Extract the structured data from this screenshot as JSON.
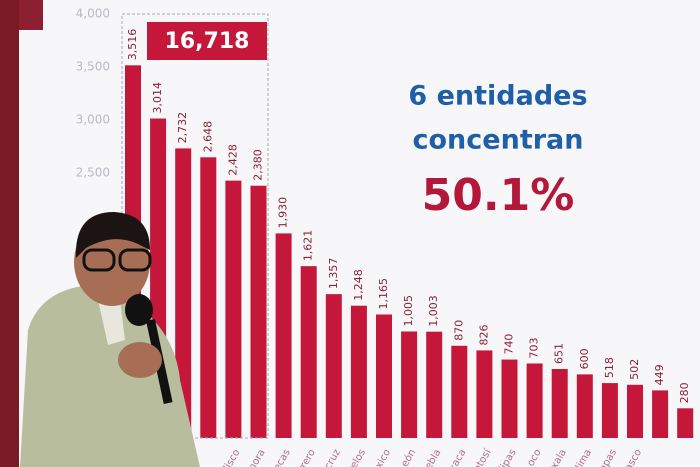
{
  "chart_data": {
    "type": "bar",
    "annotations": [
      "16,718",
      "6 entidades",
      "concentran",
      "50.1%"
    ],
    "categories": [
      null,
      null,
      null,
      null,
      "lisco",
      "nora",
      "ecas",
      "rrero",
      "cruz",
      "relos",
      "xico",
      "León",
      "uebla",
      "xaca",
      "otosí",
      "lipas",
      "oco",
      "xala",
      "lima",
      "apas",
      "asco",
      null,
      null
    ],
    "values": [
      3516,
      3014,
      2732,
      2648,
      2428,
      2380,
      1930,
      1621,
      1357,
      1248,
      1165,
      1005,
      1003,
      870,
      826,
      740,
      703,
      651,
      600,
      518,
      502,
      449,
      280
    ],
    "value_labels": [
      "3,516",
      "3,014",
      "2,732",
      "2,648",
      "2,428",
      "2,380",
      "1,930",
      "1,621",
      "1,357",
      "1,248",
      "1,165",
      "1,005",
      "1,003",
      "870",
      "826",
      "740",
      "703",
      "651",
      "600",
      "518",
      "502",
      "449",
      "280"
    ],
    "color": "#c4173a",
    "ylim": [
      0,
      4000
    ],
    "yticks": [
      {
        "value": 2500,
        "label": "2,500"
      },
      {
        "value": 3000,
        "label": "3,000"
      },
      {
        "value": 3500,
        "label": "3,500"
      },
      {
        "value": 4000,
        "label": "4,000"
      }
    ],
    "grid": false
  }
}
